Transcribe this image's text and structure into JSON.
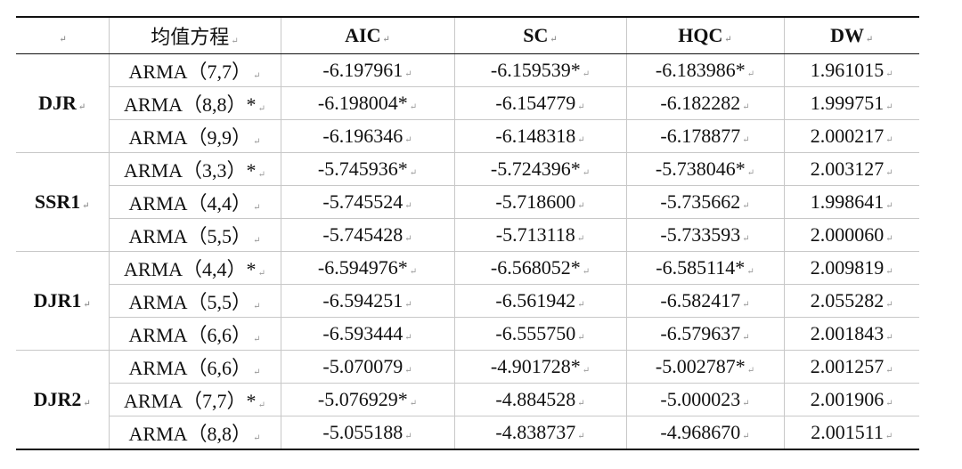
{
  "table": {
    "headers": [
      "均值方程",
      "AIC",
      "SC",
      "HQC",
      "DW"
    ],
    "groups": [
      {
        "name": "DJR",
        "rows": [
          [
            "ARMA（7,7）",
            "-6.197961",
            "-6.159539*",
            "-6.183986*",
            "1.961015"
          ],
          [
            "ARMA（8,8）*",
            "-6.198004*",
            "-6.154779",
            "-6.182282",
            "1.999751"
          ],
          [
            "ARMA（9,9）",
            "-6.196346",
            "-6.148318",
            "-6.178877",
            "2.000217"
          ]
        ]
      },
      {
        "name": "SSR1",
        "rows": [
          [
            "ARMA（3,3）*",
            "-5.745936*",
            "-5.724396*",
            "-5.738046*",
            "2.003127"
          ],
          [
            "ARMA（4,4）",
            "-5.745524",
            "-5.718600",
            "-5.735662",
            "1.998641"
          ],
          [
            "ARMA（5,5）",
            "-5.745428",
            "-5.713118",
            "-5.733593",
            "2.000060"
          ]
        ]
      },
      {
        "name": "DJR1",
        "rows": [
          [
            "ARMA（4,4）*",
            "-6.594976*",
            "-6.568052*",
            "-6.585114*",
            "2.009819"
          ],
          [
            "ARMA（5,5）",
            "-6.594251",
            "-6.561942",
            "-6.582417",
            "2.055282"
          ],
          [
            "ARMA（6,6）",
            "-6.593444",
            "-6.555750",
            "-6.579637",
            "2.001843"
          ]
        ]
      },
      {
        "name": "DJR2",
        "rows": [
          [
            "ARMA（6,6）",
            "-5.070079",
            "-4.901728*",
            "-5.002787*",
            "2.001257"
          ],
          [
            "ARMA（7,7）*",
            "-5.076929*",
            "-4.884528",
            "-5.000023",
            "2.001906"
          ],
          [
            "ARMA（8,8）",
            "-5.055188",
            "-4.838737",
            "-4.968670",
            "2.001511"
          ]
        ]
      }
    ]
  }
}
